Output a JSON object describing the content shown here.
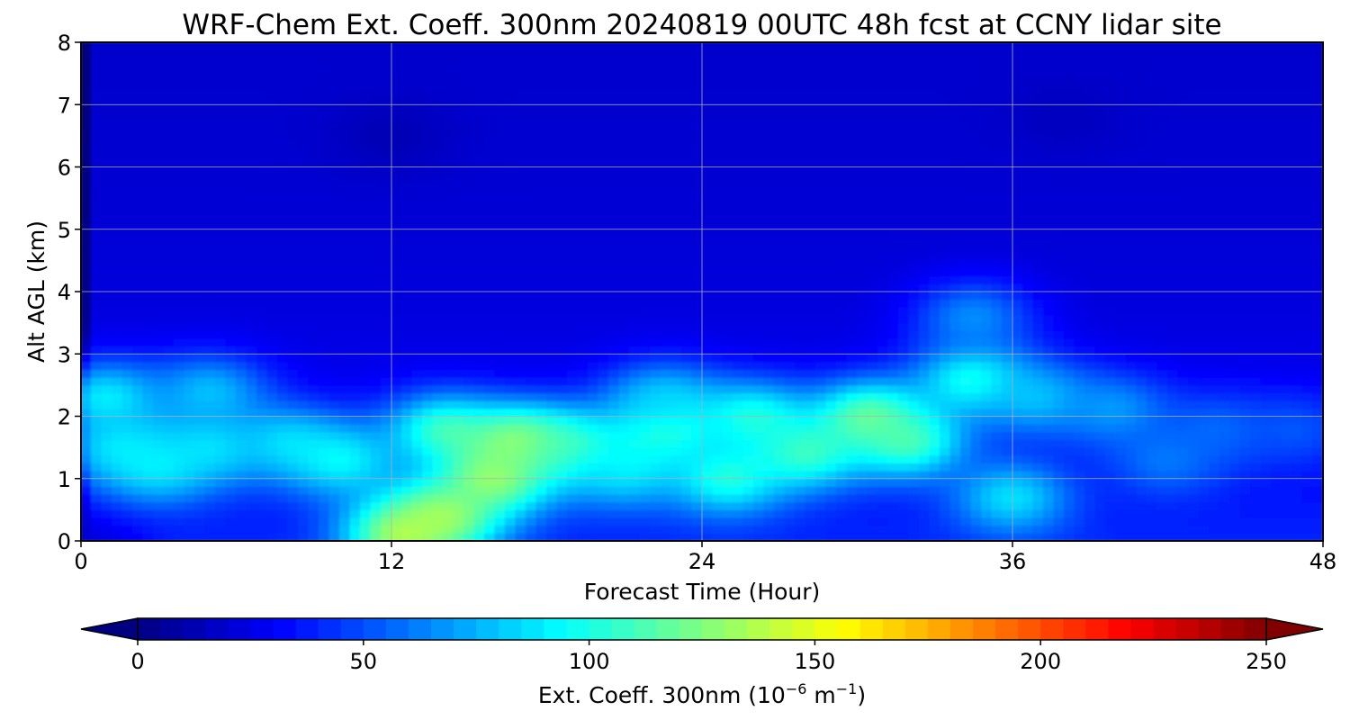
{
  "chart_data": {
    "type": "heatmap",
    "title": "WRF-Chem Ext. Coeff. 300nm  20240819 00UTC 48h fcst at CCNY lidar site",
    "xlabel": "Forecast Time (Hour)",
    "ylabel": "Alt AGL (km)",
    "xlim": [
      0,
      48
    ],
    "ylim": [
      0,
      8
    ],
    "xticks": [
      "0",
      "12",
      "24",
      "36",
      "48"
    ],
    "yticks": [
      "0",
      "1",
      "2",
      "3",
      "4",
      "5",
      "6",
      "7",
      "8"
    ],
    "grid": true,
    "colormap": "jet",
    "colorbar": {
      "orientation": "horizontal",
      "placement": "bottom",
      "extend": "both",
      "range": [
        0,
        250
      ],
      "ticks": [
        "0",
        "50",
        "100",
        "150",
        "200",
        "250"
      ],
      "label_main": "Ext. Coeff. 300nm  (10",
      "label_sup1": "−6",
      "label_mid": " m",
      "label_sup2": "−1",
      "label_end": ")"
    },
    "features": [
      {
        "x": 0.3,
        "y": 0.0,
        "value": 20
      },
      {
        "x": 1.0,
        "y": 2.3,
        "value": 100
      },
      {
        "x": 1.5,
        "y": 1.5,
        "value": 92
      },
      {
        "x": 3.0,
        "y": 1.2,
        "value": 95
      },
      {
        "x": 5.0,
        "y": 1.5,
        "value": 92
      },
      {
        "x": 5.0,
        "y": 2.4,
        "value": 85
      },
      {
        "x": 8.0,
        "y": 1.6,
        "value": 88
      },
      {
        "x": 10.0,
        "y": 1.3,
        "value": 100
      },
      {
        "x": 12.5,
        "y": 0.1,
        "value": 150
      },
      {
        "x": 14.0,
        "y": 0.4,
        "value": 140
      },
      {
        "x": 14.0,
        "y": 1.8,
        "value": 115
      },
      {
        "x": 16.0,
        "y": 1.0,
        "value": 140
      },
      {
        "x": 17.0,
        "y": 1.6,
        "value": 140
      },
      {
        "x": 19.0,
        "y": 1.5,
        "value": 120
      },
      {
        "x": 21.0,
        "y": 1.1,
        "value": 90
      },
      {
        "x": 22.5,
        "y": 1.8,
        "value": 115
      },
      {
        "x": 22.5,
        "y": 2.3,
        "value": 85
      },
      {
        "x": 25.0,
        "y": 1.0,
        "value": 110
      },
      {
        "x": 26.0,
        "y": 2.0,
        "value": 108
      },
      {
        "x": 28.0,
        "y": 1.4,
        "value": 115
      },
      {
        "x": 30.5,
        "y": 2.0,
        "value": 130
      },
      {
        "x": 32.0,
        "y": 1.6,
        "value": 120
      },
      {
        "x": 34.5,
        "y": 2.6,
        "value": 112
      },
      {
        "x": 34.5,
        "y": 3.6,
        "value": 72
      },
      {
        "x": 36.0,
        "y": 0.7,
        "value": 95
      },
      {
        "x": 37.0,
        "y": 2.3,
        "value": 85
      },
      {
        "x": 40.0,
        "y": 2.1,
        "value": 75
      },
      {
        "x": 42.0,
        "y": 1.3,
        "value": 65
      },
      {
        "x": 44.0,
        "y": 1.8,
        "value": 60
      },
      {
        "x": 47.0,
        "y": 1.8,
        "value": 55
      },
      {
        "x": 12.0,
        "y": 6.5,
        "value": 12
      },
      {
        "x": 38.0,
        "y": 6.8,
        "value": 15
      }
    ]
  }
}
